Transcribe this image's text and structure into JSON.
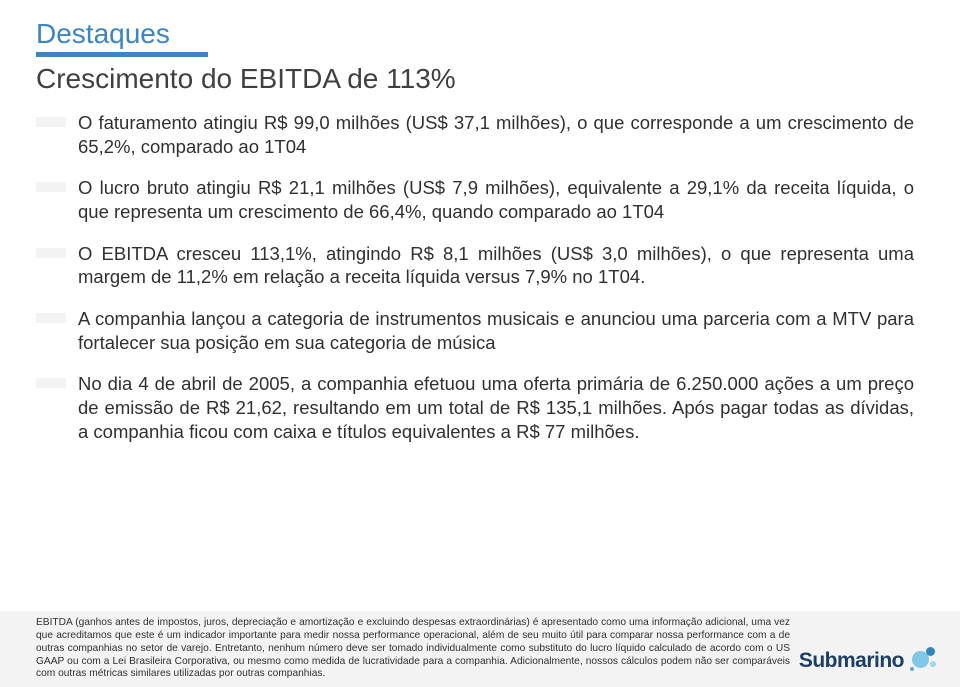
{
  "header": {
    "section_title": "Destaques",
    "subtitle": "Crescimento do EBITDA de 113%"
  },
  "bullets": [
    "O faturamento atingiu R$ 99,0 milhões (US$ 37,1 milhões), o que corresponde a um crescimento de 65,2%, comparado ao 1T04",
    "O lucro bruto atingiu R$ 21,1 milhões (US$ 7,9 milhões), equivalente a 29,1% da receita líquida, o que representa um crescimento de 66,4%, quando comparado ao 1T04",
    "O EBITDA cresceu 113,1%, atingindo R$ 8,1 milhões (US$ 3,0 milhões), o que representa uma margem de 11,2% em relação a receita líquida versus 7,9% no 1T04.",
    "A companhia lançou a categoria de instrumentos musicais e anunciou uma parceria com a MTV para fortalecer sua posição em sua categoria de música",
    "No dia 4 de abril de 2005, a companhia efetuou uma oferta primária de 6.250.000 ações a um preço de emissão de R$ 21,62, resultando em um total de R$ 135,1 milhões. Após pagar todas as dívidas, a companhia ficou com caixa e títulos equivalentes a R$ 77 milhões."
  ],
  "footnote": "EBITDA (ganhos antes de impostos, juros, depreciação e amortização e excluindo despesas extraordinárias) é apresentado como uma informação adicional, uma vez que acreditamos que este é um indicador importante para medir nossa performance operacional, além de seu muito útil para comparar nossa performance com a de outras companhias no setor de varejo. Entretanto, nenhum número deve ser tomado individualmente como substituto do lucro líquido calculado de acordo com o US GAAP ou com a Lei Brasileira Corporativa, ou mesmo como medida de lucratividade para a companhia. Adicionalmente, nossos cálculos podem não ser comparáveis com outras métricas similares utilizadas por outras companhias.",
  "logo": {
    "text": "Submarino"
  },
  "colors": {
    "accent": "#3b85c4",
    "body_text": "#303030",
    "bullet_bg": "#f3f3f3",
    "footer_bg": "#f3f3f3",
    "logo_text": "#1b3f66"
  }
}
